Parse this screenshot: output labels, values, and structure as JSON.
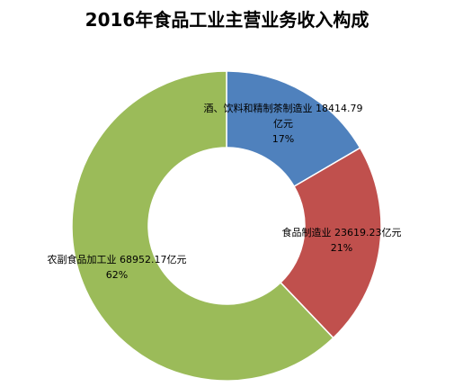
{
  "chart_data": {
    "type": "pie",
    "variant": "donut",
    "title": "2016年食品工业主营业务收入构成",
    "unit": "亿元",
    "slices": [
      {
        "name": "酒、饮料和精制茶制造业",
        "value": 18414.79,
        "percent": 17,
        "color": "#4F81BD",
        "label_lines": [
          "酒、饮料和精制茶制造业  18414.79",
          "亿元",
          "17%"
        ]
      },
      {
        "name": "食品制造业",
        "value": 23619.23,
        "percent": 21,
        "color": "#C0504D",
        "label_lines": [
          "食品制造业  23619.23亿元",
          "21%"
        ]
      },
      {
        "name": "农副食品加工业",
        "value": 68952.17,
        "percent": 62,
        "color": "#9BBB59",
        "label_lines": [
          "农副食品加工业  68952.17亿元",
          "62%"
        ]
      }
    ]
  }
}
